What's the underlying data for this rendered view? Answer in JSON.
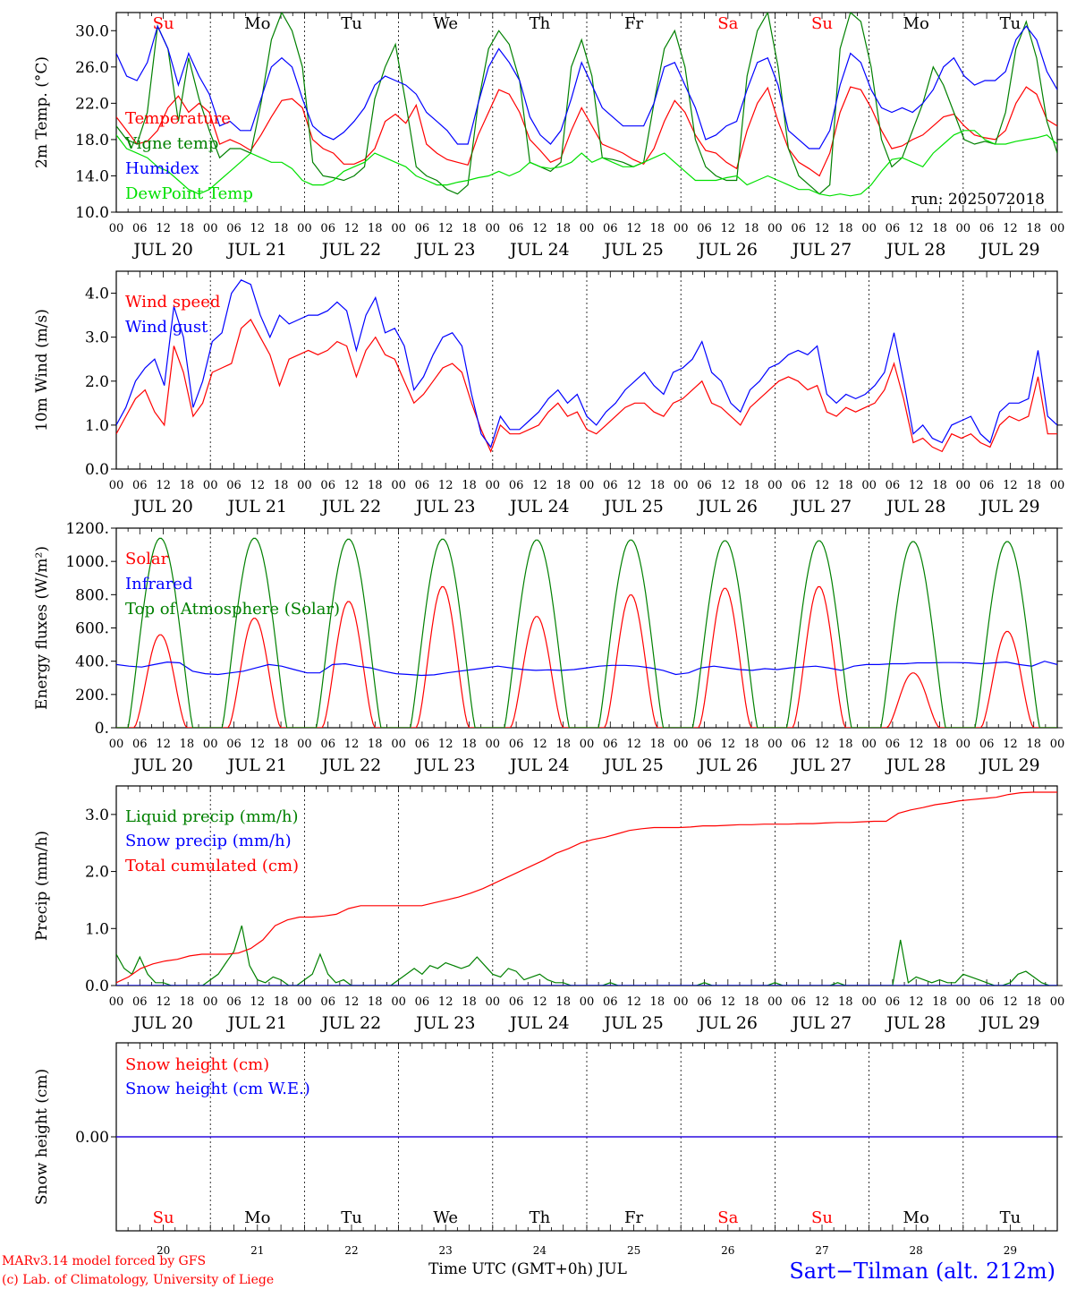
{
  "run_label": "run: 2025072018",
  "footer": {
    "credit_line1": "MARv3.14 model forced by GFS",
    "credit_line2": "(c) Lab. of Climatology, University of Liege",
    "time_axis_title": "Time UTC (GMT+0h) JUL",
    "station": "Sart−Tilman (alt. 212m)"
  },
  "days": [
    {
      "abbr": "Su",
      "date_label": "JUL 20",
      "day_num": "20",
      "weekend": true
    },
    {
      "abbr": "Mo",
      "date_label": "JUL 21",
      "day_num": "21",
      "weekend": false
    },
    {
      "abbr": "Tu",
      "date_label": "JUL 22",
      "day_num": "22",
      "weekend": false
    },
    {
      "abbr": "We",
      "date_label": "JUL 23",
      "day_num": "23",
      "weekend": false
    },
    {
      "abbr": "Th",
      "date_label": "JUL 24",
      "day_num": "24",
      "weekend": false
    },
    {
      "abbr": "Fr",
      "date_label": "JUL 25",
      "day_num": "25",
      "weekend": false
    },
    {
      "abbr": "Sa",
      "date_label": "JUL 26",
      "day_num": "26",
      "weekend": true
    },
    {
      "abbr": "Su",
      "date_label": "JUL 27",
      "day_num": "27",
      "weekend": true
    },
    {
      "abbr": "Mo",
      "date_label": "JUL 28",
      "day_num": "28",
      "weekend": false
    },
    {
      "abbr": "Tu",
      "date_label": "JUL 29",
      "day_num": "29",
      "weekend": false
    }
  ],
  "hour_ticks": [
    "00",
    "06",
    "12",
    "18"
  ],
  "final_hour_tick": "00",
  "colors": {
    "red": "#ff0000",
    "green": "#008000",
    "blue": "#0000ff",
    "lightgreen": "#00e000",
    "weekend": "#ff0000",
    "weekday": "#000000"
  },
  "chart_data": [
    {
      "id": "temperature",
      "type": "line",
      "ylabel": "2m Temp. (°C)",
      "ylim": [
        10,
        32
      ],
      "yticks": [
        "10.0",
        "14.0",
        "18.0",
        "22.0",
        "26.0",
        "30.0"
      ],
      "ytick_values": [
        10,
        14,
        18,
        22,
        26,
        30
      ],
      "show_day_letters": true,
      "series": [
        {
          "name": "Temperature",
          "color": "#ff0000",
          "values": [
            20.5,
            19,
            17.5,
            17.8,
            19,
            21.5,
            22.8,
            21,
            22,
            21,
            17.5,
            18,
            17.5,
            16.8,
            18.5,
            20.5,
            22.3,
            22.5,
            21.5,
            18,
            17,
            16.5,
            15.3,
            15.3,
            15.8,
            17,
            20,
            20.8,
            19.8,
            21.8,
            17.5,
            16.5,
            15.8,
            15.5,
            15.2,
            18.5,
            21,
            23.5,
            23,
            21,
            18,
            16.8,
            15.5,
            16,
            19,
            21.5,
            19.5,
            17.5,
            17,
            16.5,
            15.8,
            15.3,
            17,
            20,
            22.3,
            21,
            18.5,
            16.8,
            16.5,
            15.5,
            14.8,
            19,
            22,
            23.7,
            20,
            17,
            15.5,
            14.8,
            14,
            16.5,
            21,
            23.8,
            23.5,
            21.5,
            19,
            17,
            17.3,
            18,
            18.5,
            19.5,
            20.5,
            20.8,
            19.5,
            18.5,
            18.2,
            18,
            19,
            22,
            23.8,
            23,
            20.2,
            19.5
          ]
        },
        {
          "name": "Vigne temp",
          "color": "#008000",
          "values": [
            19.5,
            18,
            17.5,
            21,
            30.5,
            28,
            20,
            27,
            22.5,
            19,
            16,
            17,
            17,
            16.5,
            22,
            29,
            32,
            30,
            26,
            15.5,
            14,
            13.8,
            13.5,
            14,
            15,
            22.5,
            26,
            28.5,
            22,
            15,
            14,
            13.5,
            12.5,
            12,
            13,
            22,
            28,
            30,
            28.5,
            24.5,
            15.5,
            15,
            14.5,
            15.5,
            26,
            29,
            25,
            16,
            15.8,
            15.5,
            15,
            15.5,
            22,
            28,
            30,
            26,
            18,
            15,
            14,
            13.5,
            13.5,
            25,
            30,
            32,
            26,
            17,
            14,
            13,
            12,
            13,
            28,
            32,
            31,
            26,
            18,
            15,
            16,
            19,
            22,
            26,
            24,
            21,
            18,
            17.5,
            17.8,
            17.5,
            21,
            28,
            31,
            27,
            20,
            16.5
          ]
        },
        {
          "name": "Humidex",
          "color": "#0000ff",
          "values": [
            27.5,
            25,
            24.5,
            26.5,
            30.5,
            28,
            24,
            27.5,
            25,
            23,
            19.5,
            20,
            19,
            19,
            22.5,
            26,
            27,
            26,
            22.5,
            19.5,
            18.5,
            18,
            18.8,
            20,
            21.5,
            24,
            25,
            24.5,
            24,
            23,
            21,
            20,
            19,
            17.5,
            17.5,
            22,
            26,
            28,
            26.5,
            24.5,
            20.5,
            18.5,
            17.5,
            19,
            22.5,
            26.5,
            24,
            21.5,
            20.5,
            19.5,
            19.5,
            19.5,
            22,
            26,
            26.5,
            24,
            21.5,
            18,
            18.5,
            19.5,
            20,
            23.5,
            26.5,
            27,
            24,
            19,
            18,
            17,
            17,
            19,
            24,
            27.5,
            26.5,
            23.5,
            21.5,
            21,
            21.5,
            21,
            22,
            23.5,
            26,
            27,
            25,
            24,
            24.5,
            24.5,
            25.5,
            29,
            30.5,
            29,
            25.5,
            23.5
          ]
        },
        {
          "name": "DewPoint Temp",
          "color": "#00e000",
          "values": [
            18.5,
            17,
            16.5,
            16,
            15,
            14.5,
            13.5,
            12.5,
            12,
            12.5,
            13.5,
            14.5,
            15.5,
            16.5,
            16,
            15.5,
            15.5,
            14.8,
            13.5,
            13,
            13,
            13.5,
            14.5,
            15,
            15.5,
            16.5,
            16,
            15.5,
            15,
            14,
            13.5,
            13,
            13,
            13.3,
            13.5,
            13.8,
            14,
            14.5,
            14,
            14.5,
            15.5,
            15,
            14.8,
            15,
            15.5,
            16.5,
            15.5,
            16,
            15.5,
            15,
            15,
            15.5,
            16,
            16.5,
            15.5,
            14.5,
            13.5,
            13.5,
            13.5,
            13.8,
            14,
            13,
            13.5,
            14,
            13.5,
            13,
            12.5,
            12.5,
            12,
            11.8,
            12,
            11.8,
            12,
            13,
            14.5,
            15.8,
            16,
            15.5,
            15,
            16.5,
            17.5,
            18.5,
            19,
            19,
            18,
            17.5,
            17.5,
            17.8,
            18,
            18.2,
            18.5,
            17.5
          ]
        }
      ]
    },
    {
      "id": "wind",
      "type": "line",
      "ylabel": "10m Wind (m/s)",
      "ylim": [
        0,
        4.5
      ],
      "yticks": [
        "0.0",
        "1.0",
        "2.0",
        "3.0",
        "4.0"
      ],
      "ytick_values": [
        0,
        1,
        2,
        3,
        4
      ],
      "show_day_letters": false,
      "series": [
        {
          "name": "Wind speed",
          "color": "#ff0000",
          "values": [
            0.8,
            1.2,
            1.6,
            1.8,
            1.3,
            1.0,
            2.8,
            2.2,
            1.2,
            1.5,
            2.2,
            2.3,
            2.4,
            3.2,
            3.4,
            3.0,
            2.6,
            1.9,
            2.5,
            2.6,
            2.7,
            2.6,
            2.7,
            2.9,
            2.8,
            2.1,
            2.7,
            3.0,
            2.6,
            2.5,
            2.0,
            1.5,
            1.7,
            2.0,
            2.3,
            2.4,
            2.2,
            1.5,
            0.9,
            0.4,
            1.0,
            0.8,
            0.8,
            0.9,
            1.0,
            1.3,
            1.5,
            1.2,
            1.3,
            0.9,
            0.8,
            1.0,
            1.2,
            1.4,
            1.5,
            1.5,
            1.3,
            1.2,
            1.5,
            1.6,
            1.8,
            2.0,
            1.5,
            1.4,
            1.2,
            1.0,
            1.4,
            1.6,
            1.8,
            2.0,
            2.1,
            2.0,
            1.8,
            1.9,
            1.3,
            1.2,
            1.4,
            1.3,
            1.4,
            1.5,
            1.8,
            2.4,
            1.6,
            0.6,
            0.7,
            0.5,
            0.4,
            0.8,
            0.7,
            0.8,
            0.6,
            0.5,
            1.0,
            1.2,
            1.1,
            1.2,
            2.1,
            0.8,
            0.8
          ]
        },
        {
          "name": "Wind gust",
          "color": "#0000ff",
          "values": [
            1.0,
            1.4,
            2.0,
            2.3,
            2.5,
            1.9,
            3.7,
            3.0,
            1.4,
            2.0,
            2.9,
            3.1,
            4.0,
            4.3,
            4.2,
            3.5,
            3.0,
            3.5,
            3.3,
            3.4,
            3.5,
            3.5,
            3.6,
            3.8,
            3.6,
            2.7,
            3.5,
            3.9,
            3.1,
            3.2,
            2.8,
            1.8,
            2.1,
            2.6,
            3.0,
            3.1,
            2.8,
            1.7,
            0.8,
            0.5,
            1.2,
            0.9,
            0.9,
            1.1,
            1.3,
            1.6,
            1.8,
            1.5,
            1.7,
            1.2,
            1.0,
            1.3,
            1.5,
            1.8,
            2.0,
            2.2,
            1.9,
            1.7,
            2.2,
            2.3,
            2.5,
            2.9,
            2.2,
            2.0,
            1.5,
            1.3,
            1.8,
            2.0,
            2.3,
            2.4,
            2.6,
            2.7,
            2.6,
            2.8,
            1.7,
            1.5,
            1.7,
            1.6,
            1.7,
            1.9,
            2.2,
            3.1,
            2.0,
            0.8,
            1.0,
            0.7,
            0.6,
            1.0,
            1.1,
            1.2,
            0.8,
            0.6,
            1.3,
            1.5,
            1.5,
            1.6,
            2.7,
            1.2,
            1.0
          ]
        }
      ]
    },
    {
      "id": "energy",
      "type": "line",
      "ylabel": "Energy fluxes (W/m²)",
      "ylim": [
        0,
        1200
      ],
      "yticks": [
        "0.",
        "200.",
        "400.",
        "600.",
        "800.",
        "1000.",
        "1200."
      ],
      "ytick_values": [
        0,
        200,
        400,
        600,
        800,
        1000,
        1200
      ],
      "show_day_letters": false,
      "series": [
        {
          "name": "Solar",
          "color": "#ff0000",
          "daily_peak": [
            560,
            660,
            760,
            850,
            670,
            800,
            840,
            850,
            330,
            580
          ]
        },
        {
          "name": "Infrared",
          "color": "#0000ff",
          "values": [
            380,
            370,
            365,
            380,
            395,
            390,
            340,
            325,
            320,
            330,
            340,
            360,
            380,
            370,
            350,
            330,
            330,
            380,
            385,
            370,
            360,
            340,
            325,
            320,
            315,
            318,
            330,
            340,
            350,
            360,
            370,
            360,
            350,
            345,
            348,
            345,
            350,
            360,
            370,
            375,
            375,
            370,
            360,
            345,
            320,
            330,
            360,
            370,
            360,
            350,
            345,
            355,
            350,
            360,
            365,
            370,
            360,
            345,
            370,
            380,
            380,
            385,
            385,
            390,
            390,
            392,
            392,
            390,
            385,
            390,
            395,
            380,
            370,
            400,
            380
          ]
        },
        {
          "name": "Top of Atmosphere (Solar)",
          "color": "#008000",
          "daily_peak": [
            1140,
            1140,
            1135,
            1135,
            1130,
            1130,
            1125,
            1125,
            1120,
            1120
          ]
        }
      ]
    },
    {
      "id": "precip",
      "type": "line",
      "ylabel": "Precip (mm/h)",
      "ylim": [
        0,
        3.5
      ],
      "yticks": [
        "0.0",
        "1.0",
        "2.0",
        "3.0"
      ],
      "ytick_values": [
        0,
        1,
        2,
        3
      ],
      "show_day_letters": false,
      "series": [
        {
          "name": "Liquid precip (mm/h)",
          "color": "#008000",
          "values": [
            0.55,
            0.3,
            0.2,
            0.5,
            0.2,
            0.05,
            0.05,
            0,
            0,
            0,
            0,
            0,
            0.1,
            0.2,
            0.4,
            0.6,
            1.05,
            0.35,
            0.1,
            0.05,
            0.15,
            0.1,
            0,
            0,
            0.1,
            0.2,
            0.55,
            0.2,
            0.05,
            0.1,
            0,
            0,
            0,
            0,
            0,
            0,
            0.1,
            0.2,
            0.3,
            0.2,
            0.35,
            0.3,
            0.4,
            0.35,
            0.3,
            0.35,
            0.5,
            0.35,
            0.2,
            0.15,
            0.3,
            0.25,
            0.1,
            0.15,
            0.2,
            0.1,
            0.05,
            0.05,
            0,
            0,
            0,
            0,
            0,
            0.05,
            0,
            0,
            0,
            0,
            0,
            0,
            0,
            0,
            0,
            0,
            0,
            0.05,
            0,
            0,
            0,
            0,
            0,
            0,
            0,
            0,
            0.05,
            0,
            0,
            0,
            0,
            0,
            0,
            0,
            0.05,
            0,
            0,
            0,
            0,
            0,
            0,
            0,
            0.8,
            0.05,
            0.15,
            0.1,
            0.05,
            0.1,
            0.05,
            0.05,
            0.2,
            0.15,
            0.1,
            0.05,
            0,
            0,
            0.05,
            0.2,
            0.25,
            0.15,
            0.05,
            0,
            0
          ]
        },
        {
          "name": "Snow precip (mm/h)",
          "color": "#0000ff",
          "values": [
            0,
            0
          ]
        },
        {
          "name": "Total cumulated (cm)",
          "color": "#ff0000",
          "values": [
            0.05,
            0.15,
            0.3,
            0.38,
            0.43,
            0.46,
            0.52,
            0.55,
            0.55,
            0.55,
            0.57,
            0.65,
            0.8,
            1.05,
            1.15,
            1.2,
            1.2,
            1.22,
            1.25,
            1.35,
            1.4,
            1.4,
            1.4,
            1.4,
            1.4,
            1.4,
            1.45,
            1.5,
            1.55,
            1.62,
            1.7,
            1.8,
            1.9,
            2.0,
            2.1,
            2.2,
            2.32,
            2.4,
            2.5,
            2.56,
            2.6,
            2.66,
            2.72,
            2.75,
            2.77,
            2.77,
            2.77,
            2.78,
            2.8,
            2.8,
            2.81,
            2.82,
            2.82,
            2.83,
            2.83,
            2.83,
            2.84,
            2.84,
            2.85,
            2.86,
            2.86,
            2.87,
            2.88,
            2.88,
            3.02,
            3.08,
            3.12,
            3.17,
            3.2,
            3.24,
            3.26,
            3.28,
            3.3,
            3.35,
            3.38,
            3.39,
            3.39,
            3.39
          ]
        }
      ]
    },
    {
      "id": "snow",
      "type": "line",
      "ylabel": "Snow height (cm)",
      "ylim": [
        -1,
        1
      ],
      "yticks": [
        "0.00"
      ],
      "ytick_values": [
        0
      ],
      "show_day_letters": true,
      "series": [
        {
          "name": "Snow height (cm)",
          "color": "#ff0000",
          "values": [
            0,
            0
          ]
        },
        {
          "name": "Snow height (cm W.E.)",
          "color": "#0000ff",
          "values": [
            0,
            0
          ]
        }
      ]
    }
  ]
}
